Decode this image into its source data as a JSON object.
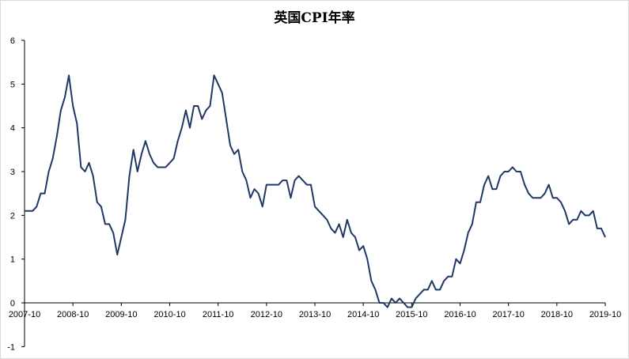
{
  "chart_data": {
    "type": "line",
    "title": "英国CPI年率",
    "xlabel": "",
    "ylabel": "",
    "ylim": [
      -1,
      6
    ],
    "yticks": [
      -1,
      0,
      1,
      2,
      3,
      4,
      5,
      6
    ],
    "xticks": [
      "2007-10",
      "2008-10",
      "2009-10",
      "2010-10",
      "2011-10",
      "2012-10",
      "2013-10",
      "2014-10",
      "2015-10",
      "2016-10",
      "2017-10",
      "2018-10",
      "2019-10"
    ],
    "grid": false,
    "legend": "none",
    "colors": {
      "line": "#1f3864",
      "axis": "#000000"
    },
    "series": [
      {
        "start": "2007-10",
        "values": [
          2.1,
          2.1,
          2.1,
          2.2,
          2.5,
          2.5,
          3.0,
          3.3,
          3.8,
          4.4,
          4.7,
          5.2,
          4.5,
          4.1,
          3.1,
          3.0,
          3.2,
          2.9,
          2.3,
          2.2,
          1.8,
          1.8,
          1.6,
          1.1,
          1.5,
          1.9,
          2.9,
          3.5,
          3.0,
          3.4,
          3.7,
          3.4,
          3.2,
          3.1,
          3.1,
          3.1,
          3.2,
          3.3,
          3.7,
          4.0,
          4.4,
          4.0,
          4.5,
          4.5,
          4.2,
          4.4,
          4.5,
          5.2,
          5.0,
          4.8,
          4.2,
          3.6,
          3.4,
          3.5,
          3.0,
          2.8,
          2.4,
          2.6,
          2.5,
          2.2,
          2.7,
          2.7,
          2.7,
          2.7,
          2.8,
          2.8,
          2.4,
          2.8,
          2.9,
          2.8,
          2.7,
          2.7,
          2.2,
          2.1,
          2.0,
          1.9,
          1.7,
          1.6,
          1.8,
          1.5,
          1.9,
          1.6,
          1.5,
          1.2,
          1.3,
          1.0,
          0.5,
          0.3,
          0.0,
          0.0,
          -0.1,
          0.1,
          0.0,
          0.1,
          0.0,
          -0.1,
          -0.1,
          0.1,
          0.2,
          0.3,
          0.3,
          0.5,
          0.3,
          0.3,
          0.5,
          0.6,
          0.6,
          1.0,
          0.9,
          1.2,
          1.6,
          1.8,
          2.3,
          2.3,
          2.7,
          2.9,
          2.6,
          2.6,
          2.9,
          3.0,
          3.0,
          3.1,
          3.0,
          3.0,
          2.7,
          2.5,
          2.4,
          2.4,
          2.4,
          2.5,
          2.7,
          2.4,
          2.4,
          2.3,
          2.1,
          1.8,
          1.9,
          1.9,
          2.1,
          2.0,
          2.0,
          2.1,
          1.7,
          1.7,
          1.5
        ]
      }
    ]
  }
}
